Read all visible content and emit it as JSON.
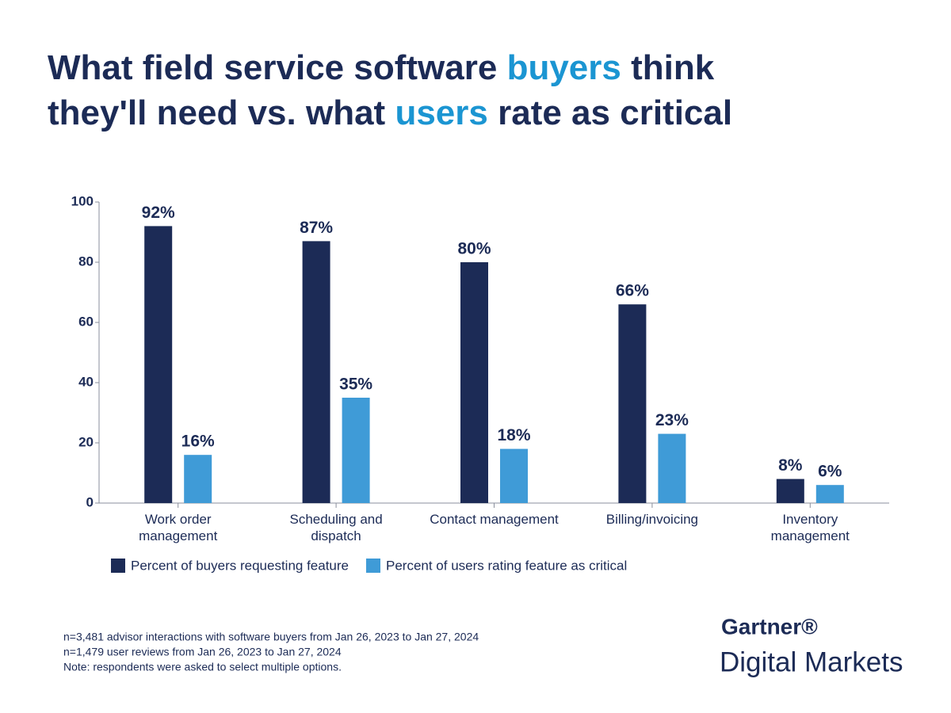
{
  "chart_data": {
    "type": "bar",
    "title": [
      "What field service software buyers think",
      "they'll need vs. what users rate as critical"
    ],
    "title_highlights": [
      "buyers",
      "users"
    ],
    "title_highlight_color": "#1b95d2",
    "categories": [
      "Work order\nmanagement",
      "Scheduling and\ndispatch",
      "Contact management",
      "Billing/invoicing",
      "Inventory\nmanagement"
    ],
    "series": [
      {
        "name": "Percent of buyers requesting feature",
        "color": "#1c2b56",
        "values": [
          92,
          87,
          80,
          66,
          8
        ],
        "value_labels": [
          "92%",
          "87%",
          "80%",
          "66%",
          "8%"
        ]
      },
      {
        "name": "Percent of users rating feature as critical",
        "color": "#3f9bd7",
        "values": [
          16,
          35,
          18,
          23,
          6
        ],
        "value_labels": [
          "16%",
          "35%",
          "18%",
          "23%",
          "6%"
        ]
      }
    ],
    "ylim": [
      0,
      100
    ],
    "yticks": [
      0,
      20,
      40,
      60,
      80,
      100
    ],
    "grid": false,
    "legend": "bottom-left",
    "notes": [
      "n=3,481 advisor interactions with software buyers from Jan 26, 2023 to Jan 27, 2024",
      "n=1,479 user reviews from Jan 26, 2023 to Jan 27, 2024",
      "Note: respondents were asked to select multiple options."
    ],
    "logo": {
      "brand": "Gartner®",
      "product": "Digital Markets"
    }
  }
}
